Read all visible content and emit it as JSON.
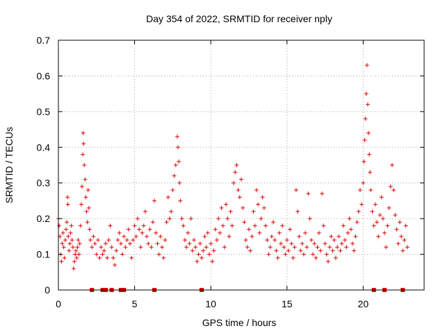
{
  "chart_data": {
    "type": "scatter",
    "title": "Day 354 of 2022, SRMTID for receiver nply",
    "xlabel": "GPS time / hours",
    "ylabel": "SRMTID / TECUs",
    "xlim": [
      0,
      24
    ],
    "ylim": [
      0,
      0.7
    ],
    "x_ticks": [
      {
        "value": 0,
        "label": "0"
      },
      {
        "value": 5,
        "label": "5"
      },
      {
        "value": 10,
        "label": "10"
      },
      {
        "value": 15,
        "label": "15"
      },
      {
        "value": 20,
        "label": "20"
      }
    ],
    "y_ticks": [
      {
        "value": 0,
        "label": "0"
      },
      {
        "value": 0.1,
        "label": "0.1"
      },
      {
        "value": 0.2,
        "label": "0.2"
      },
      {
        "value": 0.3,
        "label": "0.3"
      },
      {
        "value": 0.4,
        "label": "0.4"
      },
      {
        "value": 0.5,
        "label": "0.5"
      },
      {
        "value": 0.6,
        "label": "0.6"
      },
      {
        "value": 0.7,
        "label": "0.7"
      }
    ],
    "grid": true,
    "series": [
      {
        "name": "SRMTID",
        "color": "#dd0000",
        "marker": "plus",
        "points": [
          [
            0.0,
            0.2
          ],
          [
            0.05,
            0.18
          ],
          [
            0.1,
            0.15
          ],
          [
            0.15,
            0.1
          ],
          [
            0.2,
            0.08
          ],
          [
            0.25,
            0.13
          ],
          [
            0.3,
            0.16
          ],
          [
            0.35,
            0.12
          ],
          [
            0.4,
            0.09
          ],
          [
            0.45,
            0.14
          ],
          [
            0.5,
            0.17
          ],
          [
            0.55,
            0.19
          ],
          [
            0.6,
            0.26
          ],
          [
            0.62,
            0.24
          ],
          [
            0.65,
            0.15
          ],
          [
            0.7,
            0.11
          ],
          [
            0.75,
            0.13
          ],
          [
            0.8,
            0.16
          ],
          [
            0.85,
            0.18
          ],
          [
            0.9,
            0.14
          ],
          [
            0.95,
            0.12
          ],
          [
            1.0,
            0.06
          ],
          [
            1.05,
            0.08
          ],
          [
            1.1,
            0.1
          ],
          [
            1.15,
            0.11
          ],
          [
            1.2,
            0.09
          ],
          [
            1.25,
            0.12
          ],
          [
            1.3,
            0.14
          ],
          [
            1.35,
            0.1
          ],
          [
            1.4,
            0.13
          ],
          [
            1.45,
            0.18
          ],
          [
            1.5,
            0.24
          ],
          [
            1.55,
            0.29
          ],
          [
            1.6,
            0.38
          ],
          [
            1.62,
            0.44
          ],
          [
            1.65,
            0.41
          ],
          [
            1.7,
            0.35
          ],
          [
            1.75,
            0.31
          ],
          [
            1.8,
            0.26
          ],
          [
            1.85,
            0.22
          ],
          [
            1.9,
            0.19
          ],
          [
            1.95,
            0.28
          ],
          [
            2.0,
            0.23
          ],
          [
            2.05,
            0.17
          ],
          [
            2.1,
            0.14
          ],
          [
            2.2,
            0.12
          ],
          [
            2.3,
            0.15
          ],
          [
            2.4,
            0.13
          ],
          [
            2.5,
            0.1
          ],
          [
            2.6,
            0.14
          ],
          [
            2.7,
            0.09
          ],
          [
            2.8,
            0.12
          ],
          [
            2.9,
            0.1
          ],
          [
            3.0,
            0.11
          ],
          [
            3.1,
            0.13
          ],
          [
            3.2,
            0.09
          ],
          [
            3.3,
            0.14
          ],
          [
            3.4,
            0.18
          ],
          [
            3.5,
            0.12
          ],
          [
            3.6,
            0.09
          ],
          [
            3.7,
            0.07
          ],
          [
            3.8,
            0.11
          ],
          [
            3.9,
            0.14
          ],
          [
            4.0,
            0.16
          ],
          [
            4.1,
            0.13
          ],
          [
            4.2,
            0.1
          ],
          [
            4.3,
            0.15
          ],
          [
            4.4,
            0.12
          ],
          [
            4.5,
            0.14
          ],
          [
            4.6,
            0.17
          ],
          [
            4.7,
            0.13
          ],
          [
            4.8,
            0.09
          ],
          [
            4.9,
            0.14
          ],
          [
            5.0,
            0.18
          ],
          [
            5.1,
            0.15
          ],
          [
            5.2,
            0.2
          ],
          [
            5.3,
            0.17
          ],
          [
            5.4,
            0.12
          ],
          [
            5.5,
            0.16
          ],
          [
            5.6,
            0.18
          ],
          [
            5.7,
            0.22
          ],
          [
            5.8,
            0.15
          ],
          [
            5.9,
            0.13
          ],
          [
            6.0,
            0.17
          ],
          [
            6.1,
            0.12
          ],
          [
            6.2,
            0.19
          ],
          [
            6.3,
            0.25
          ],
          [
            6.4,
            0.16
          ],
          [
            6.5,
            0.13
          ],
          [
            6.6,
            0.1
          ],
          [
            6.7,
            0.15
          ],
          [
            6.8,
            0.12
          ],
          [
            6.9,
            0.09
          ],
          [
            7.0,
            0.14
          ],
          [
            7.1,
            0.19
          ],
          [
            7.2,
            0.26
          ],
          [
            7.3,
            0.2
          ],
          [
            7.4,
            0.22
          ],
          [
            7.5,
            0.28
          ],
          [
            7.6,
            0.32
          ],
          [
            7.7,
            0.35
          ],
          [
            7.8,
            0.43
          ],
          [
            7.85,
            0.4
          ],
          [
            7.9,
            0.36
          ],
          [
            7.95,
            0.3
          ],
          [
            8.0,
            0.25
          ],
          [
            8.1,
            0.2
          ],
          [
            8.2,
            0.18
          ],
          [
            8.3,
            0.14
          ],
          [
            8.4,
            0.12
          ],
          [
            8.5,
            0.16
          ],
          [
            8.6,
            0.13
          ],
          [
            8.7,
            0.2
          ],
          [
            8.8,
            0.11
          ],
          [
            8.9,
            0.14
          ],
          [
            9.0,
            0.12
          ],
          [
            9.1,
            0.08
          ],
          [
            9.2,
            0.1
          ],
          [
            9.3,
            0.13
          ],
          [
            9.4,
            0.09
          ],
          [
            9.5,
            0.11
          ],
          [
            9.6,
            0.15
          ],
          [
            9.7,
            0.12
          ],
          [
            9.8,
            0.16
          ],
          [
            9.9,
            0.1
          ],
          [
            10.0,
            0.13
          ],
          [
            10.1,
            0.08
          ],
          [
            10.2,
            0.11
          ],
          [
            10.3,
            0.17
          ],
          [
            10.4,
            0.14
          ],
          [
            10.5,
            0.2
          ],
          [
            10.6,
            0.16
          ],
          [
            10.7,
            0.23
          ],
          [
            10.8,
            0.18
          ],
          [
            10.9,
            0.12
          ],
          [
            11.0,
            0.24
          ],
          [
            11.1,
            0.2
          ],
          [
            11.2,
            0.15
          ],
          [
            11.3,
            0.22
          ],
          [
            11.4,
            0.18
          ],
          [
            11.5,
            0.3
          ],
          [
            11.6,
            0.33
          ],
          [
            11.7,
            0.35
          ],
          [
            11.8,
            0.28
          ],
          [
            11.9,
            0.26
          ],
          [
            12.0,
            0.31
          ],
          [
            12.1,
            0.23
          ],
          [
            12.2,
            0.19
          ],
          [
            12.3,
            0.14
          ],
          [
            12.4,
            0.12
          ],
          [
            12.5,
            0.17
          ],
          [
            12.6,
            0.11
          ],
          [
            12.7,
            0.15
          ],
          [
            12.8,
            0.22
          ],
          [
            12.9,
            0.18
          ],
          [
            13.0,
            0.28
          ],
          [
            13.1,
            0.24
          ],
          [
            13.2,
            0.16
          ],
          [
            13.3,
            0.2
          ],
          [
            13.4,
            0.26
          ],
          [
            13.5,
            0.23
          ],
          [
            13.6,
            0.18
          ],
          [
            13.7,
            0.14
          ],
          [
            13.8,
            0.1
          ],
          [
            13.9,
            0.12
          ],
          [
            14.0,
            0.15
          ],
          [
            14.1,
            0.19
          ],
          [
            14.2,
            0.14
          ],
          [
            14.3,
            0.11
          ],
          [
            14.4,
            0.09
          ],
          [
            14.5,
            0.16
          ],
          [
            14.6,
            0.13
          ],
          [
            14.7,
            0.18
          ],
          [
            14.8,
            0.12
          ],
          [
            14.9,
            0.1
          ],
          [
            15.0,
            0.14
          ],
          [
            15.1,
            0.11
          ],
          [
            15.2,
            0.17
          ],
          [
            15.3,
            0.13
          ],
          [
            15.4,
            0.09
          ],
          [
            15.5,
            0.12
          ],
          [
            15.6,
            0.28
          ],
          [
            15.7,
            0.22
          ],
          [
            15.8,
            0.15
          ],
          [
            15.9,
            0.11
          ],
          [
            16.0,
            0.13
          ],
          [
            16.1,
            0.1
          ],
          [
            16.2,
            0.16
          ],
          [
            16.3,
            0.12
          ],
          [
            16.4,
            0.27
          ],
          [
            16.5,
            0.2
          ],
          [
            16.6,
            0.14
          ],
          [
            16.7,
            0.1
          ],
          [
            16.8,
            0.13
          ],
          [
            16.9,
            0.09
          ],
          [
            17.0,
            0.12
          ],
          [
            17.1,
            0.16
          ],
          [
            17.2,
            0.11
          ],
          [
            17.3,
            0.27
          ],
          [
            17.4,
            0.18
          ],
          [
            17.5,
            0.13
          ],
          [
            17.6,
            0.1
          ],
          [
            17.7,
            0.08
          ],
          [
            17.8,
            0.12
          ],
          [
            17.9,
            0.15
          ],
          [
            18.0,
            0.11
          ],
          [
            18.1,
            0.14
          ],
          [
            18.2,
            0.09
          ],
          [
            18.3,
            0.12
          ],
          [
            18.4,
            0.15
          ],
          [
            18.5,
            0.11
          ],
          [
            18.6,
            0.13
          ],
          [
            18.7,
            0.18
          ],
          [
            18.8,
            0.14
          ],
          [
            18.9,
            0.12
          ],
          [
            19.0,
            0.16
          ],
          [
            19.1,
            0.2
          ],
          [
            19.2,
            0.17
          ],
          [
            19.3,
            0.13
          ],
          [
            19.4,
            0.11
          ],
          [
            19.5,
            0.15
          ],
          [
            19.6,
            0.19
          ],
          [
            19.7,
            0.22
          ],
          [
            19.8,
            0.28
          ],
          [
            19.9,
            0.24
          ],
          [
            20.0,
            0.3
          ],
          [
            20.05,
            0.36
          ],
          [
            20.1,
            0.42
          ],
          [
            20.15,
            0.48
          ],
          [
            20.2,
            0.55
          ],
          [
            20.25,
            0.63
          ],
          [
            20.3,
            0.52
          ],
          [
            20.35,
            0.44
          ],
          [
            20.4,
            0.38
          ],
          [
            20.45,
            0.33
          ],
          [
            20.5,
            0.28
          ],
          [
            20.6,
            0.22
          ],
          [
            20.7,
            0.18
          ],
          [
            20.8,
            0.24
          ],
          [
            20.9,
            0.19
          ],
          [
            21.0,
            0.15
          ],
          [
            21.1,
            0.21
          ],
          [
            21.2,
            0.26
          ],
          [
            21.3,
            0.2
          ],
          [
            21.4,
            0.16
          ],
          [
            21.5,
            0.12
          ],
          [
            21.6,
            0.18
          ],
          [
            21.7,
            0.23
          ],
          [
            21.8,
            0.29
          ],
          [
            21.9,
            0.35
          ],
          [
            22.0,
            0.28
          ],
          [
            22.1,
            0.21
          ],
          [
            22.2,
            0.17
          ],
          [
            22.3,
            0.13
          ],
          [
            22.4,
            0.19
          ],
          [
            22.5,
            0.15
          ],
          [
            22.6,
            0.11
          ],
          [
            22.7,
            0.14
          ],
          [
            22.8,
            0.18
          ],
          [
            22.9,
            0.12
          ]
        ],
        "zero_markers_x": [
          2.2,
          2.9,
          3.1,
          3.5,
          4.1,
          4.3,
          6.3,
          9.4,
          20.7,
          21.4,
          22.6
        ]
      }
    ]
  }
}
